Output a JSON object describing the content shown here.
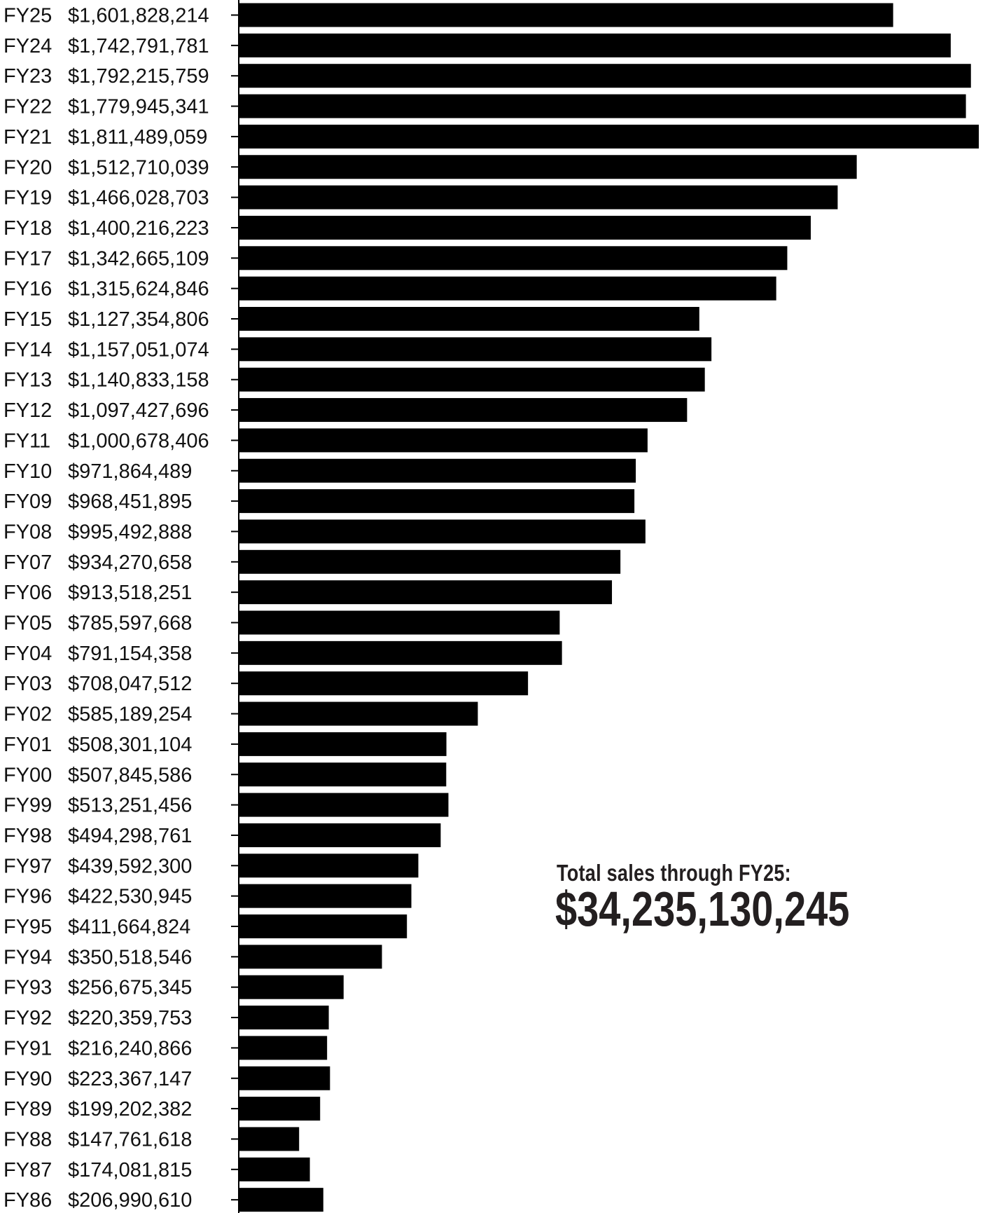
{
  "chart_data": {
    "type": "bar",
    "orientation": "horizontal",
    "categories": [
      "FY25",
      "FY24",
      "FY23",
      "FY22",
      "FY21",
      "FY20",
      "FY19",
      "FY18",
      "FY17",
      "FY16",
      "FY15",
      "FY14",
      "FY13",
      "FY12",
      "FY11",
      "FY10",
      "FY09",
      "FY08",
      "FY07",
      "FY06",
      "FY05",
      "FY04",
      "FY03",
      "FY02",
      "FY01",
      "FY00",
      "FY99",
      "FY98",
      "FY97",
      "FY96",
      "FY95",
      "FY94",
      "FY93",
      "FY92",
      "FY91",
      "FY90",
      "FY89",
      "FY88",
      "FY87",
      "FY86"
    ],
    "values": [
      1601828214,
      1742791781,
      1792215759,
      1779945341,
      1811489059,
      1512710039,
      1466028703,
      1400216223,
      1342665109,
      1315624846,
      1127354806,
      1157051074,
      1140833158,
      1097427696,
      1000678406,
      971864489,
      968451895,
      995492888,
      934270658,
      913518251,
      785597668,
      791154358,
      708047512,
      585189254,
      508301104,
      507845586,
      513251456,
      494298761,
      439592300,
      422530945,
      411664824,
      350518546,
      256675345,
      220359753,
      216240866,
      223367147,
      199202382,
      147761618,
      174081815,
      206990610
    ],
    "value_labels": [
      "$1,601,828,214",
      "$1,742,791,781",
      "$1,792,215,759",
      "$1,779,945,341",
      "$1,811,489,059",
      "$1,512,710,039",
      "$1,466,028,703",
      "$1,400,216,223",
      "$1,342,665,109",
      "$1,315,624,846",
      "$1,127,354,806",
      "$1,157,051,074",
      "$1,140,833,158",
      "$1,097,427,696",
      "$1,000,678,406",
      "$971,864,489",
      "$968,451,895",
      "$995,492,888",
      "$934,270,658",
      "$913,518,251",
      "$785,597,668",
      "$791,154,358",
      "$708,047,512",
      "$585,189,254",
      "$508,301,104",
      "$507,845,586",
      "$513,251,456",
      "$494,298,761",
      "$439,592,300",
      "$422,530,945",
      "$411,664,824",
      "$350,518,546",
      "$256,675,345",
      "$220,359,753",
      "$216,240,866",
      "$223,367,147",
      "$199,202,382",
      "$147,761,618",
      "$174,081,815",
      "$206,990,610"
    ],
    "bar_color": "#000000",
    "grid": false,
    "legend": "none",
    "xlim": [
      0,
      1811489059
    ]
  },
  "annotation": {
    "label": "Total sales through FY25:",
    "value": "$34,235,130,245"
  }
}
